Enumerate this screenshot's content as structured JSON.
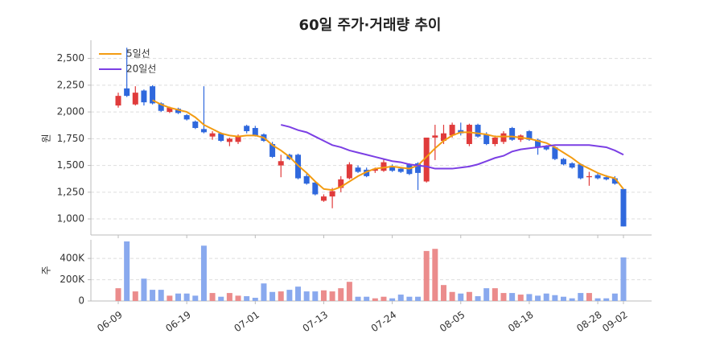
{
  "chart_data": {
    "type": "candlestick",
    "title": "60일 주가·거래량 추이",
    "categories": [
      "06-09",
      null,
      null,
      null,
      null,
      null,
      null,
      null,
      "06-19",
      null,
      null,
      null,
      null,
      null,
      null,
      null,
      "07-01",
      null,
      null,
      null,
      null,
      null,
      null,
      null,
      "07-13",
      null,
      null,
      null,
      null,
      null,
      null,
      null,
      "07-24",
      null,
      null,
      null,
      null,
      null,
      null,
      null,
      "08-05",
      null,
      null,
      null,
      null,
      null,
      null,
      null,
      "08-18",
      null,
      null,
      null,
      null,
      null,
      null,
      null,
      "08-28",
      null,
      null,
      "09-02"
    ],
    "open": [
      2060,
      2220,
      2070,
      2200,
      2240,
      2080,
      2000,
      2030,
      1970,
      1910,
      1840,
      1770,
      1800,
      1720,
      1720,
      1870,
      1850,
      1790,
      1700,
      1500,
      1600,
      1600,
      1400,
      1340,
      1170,
      1210,
      1290,
      1380,
      1480,
      1460,
      1450,
      1450,
      1490,
      1470,
      1510,
      1520,
      1350,
      1760,
      1730,
      1780,
      1830,
      1700,
      1880,
      1790,
      1700,
      1720,
      1850,
      1740,
      1820,
      1740,
      1680,
      1670,
      1560,
      1520,
      1510,
      1390,
      1410,
      1390,
      1380,
      1280
    ],
    "high": [
      2180,
      2600,
      2240,
      2210,
      2250,
      2090,
      2050,
      2040,
      1980,
      1920,
      2240,
      1820,
      1810,
      1760,
      1790,
      1880,
      1870,
      1800,
      1720,
      1600,
      1610,
      1610,
      1420,
      1350,
      1230,
      1290,
      1400,
      1530,
      1500,
      1480,
      1480,
      1560,
      1510,
      1480,
      1520,
      1530,
      1760,
      1880,
      1880,
      1900,
      1900,
      1890,
      1890,
      1810,
      1780,
      1820,
      1860,
      1790,
      1830,
      1750,
      1690,
      1680,
      1570,
      1530,
      1520,
      1440,
      1430,
      1410,
      1400,
      1280
    ],
    "low": [
      2040,
      2140,
      2060,
      2060,
      2070,
      2000,
      1990,
      1980,
      1920,
      1840,
      1800,
      1740,
      1720,
      1680,
      1700,
      1800,
      1770,
      1720,
      1570,
      1390,
      1550,
      1370,
      1320,
      1220,
      1160,
      1100,
      1250,
      1370,
      1430,
      1390,
      1430,
      1440,
      1440,
      1430,
      1410,
      1270,
      1340,
      1550,
      1700,
      1760,
      1780,
      1680,
      1760,
      1690,
      1680,
      1700,
      1730,
      1720,
      1730,
      1600,
      1640,
      1550,
      1500,
      1470,
      1370,
      1310,
      1370,
      1360,
      1320,
      930
    ],
    "close": [
      2150,
      2150,
      2180,
      2090,
      2080,
      2010,
      2040,
      1990,
      1930,
      1850,
      1810,
      1800,
      1730,
      1750,
      1770,
      1820,
      1780,
      1730,
      1580,
      1540,
      1560,
      1380,
      1330,
      1230,
      1210,
      1260,
      1370,
      1510,
      1440,
      1400,
      1470,
      1530,
      1450,
      1440,
      1420,
      1430,
      1760,
      1780,
      1800,
      1880,
      1800,
      1880,
      1770,
      1700,
      1760,
      1800,
      1740,
      1780,
      1740,
      1670,
      1650,
      1560,
      1510,
      1480,
      1380,
      1400,
      1380,
      1370,
      1330,
      930
    ],
    "colors": {
      "up": "#e03b3b",
      "down": "#2f68dd",
      "volume_up": "#eb8c8c",
      "volume_down": "#89a9ee"
    },
    "series": [
      {
        "name": "5일선",
        "color": "#f39c12",
        "values": [
          null,
          null,
          null,
          null,
          2110,
          2070,
          2040,
          2020,
          2000,
          1950,
          1880,
          1840,
          1800,
          1780,
          1770,
          1780,
          1780,
          1760,
          1690,
          1640,
          1580,
          1500,
          1430,
          1350,
          1280,
          1270,
          1300,
          1350,
          1400,
          1440,
          1470,
          1480,
          1490,
          1480,
          1470,
          1500,
          1580,
          1660,
          1730,
          1780,
          1810,
          1810,
          1800,
          1790,
          1770,
          1770,
          1770,
          1760,
          1750,
          1730,
          1710,
          1670,
          1620,
          1570,
          1510,
          1470,
          1430,
          1400,
          1380,
          1280
        ]
      },
      {
        "name": "20일선",
        "color": "#7b3fe4",
        "values": [
          null,
          null,
          null,
          null,
          null,
          null,
          null,
          null,
          null,
          null,
          null,
          null,
          null,
          null,
          null,
          null,
          null,
          null,
          null,
          1880,
          1860,
          1830,
          1810,
          1770,
          1730,
          1690,
          1670,
          1640,
          1620,
          1600,
          1580,
          1560,
          1540,
          1530,
          1510,
          1500,
          1490,
          1470,
          1470,
          1470,
          1480,
          1490,
          1510,
          1540,
          1570,
          1590,
          1630,
          1650,
          1660,
          1670,
          1680,
          1690,
          1690,
          1690,
          1690,
          1690,
          1680,
          1670,
          1640,
          1600
        ]
      }
    ],
    "legend": "upper left",
    "grid": true,
    "ylabel": "원",
    "ylim": [
      850,
      2670
    ],
    "yticks": [
      {
        "value": 1000,
        "label": "1,000"
      },
      {
        "value": 1250,
        "label": "1,250"
      },
      {
        "value": 1500,
        "label": "1,500"
      },
      {
        "value": 1750,
        "label": "1,750"
      },
      {
        "value": 2000,
        "label": "2,000"
      },
      {
        "value": 2250,
        "label": "2,250"
      },
      {
        "value": 2500,
        "label": "2,500"
      }
    ],
    "volume": {
      "ylabel": "주",
      "values": [
        120000,
        560000,
        90000,
        210000,
        105000,
        105000,
        50000,
        70000,
        70000,
        50000,
        520000,
        75000,
        40000,
        75000,
        50000,
        45000,
        30000,
        165000,
        85000,
        90000,
        105000,
        135000,
        90000,
        90000,
        100000,
        90000,
        120000,
        180000,
        40000,
        40000,
        25000,
        40000,
        25000,
        60000,
        40000,
        40000,
        470000,
        490000,
        150000,
        85000,
        70000,
        85000,
        45000,
        120000,
        120000,
        75000,
        75000,
        60000,
        65000,
        50000,
        70000,
        55000,
        40000,
        25000,
        75000,
        75000,
        25000,
        25000,
        70000,
        410000
      ],
      "ylim": [
        0,
        575000
      ],
      "yticks": [
        0,
        {
          "value": 200000,
          "label": "200K"
        },
        {
          "value": 400000,
          "label": "400K"
        }
      ]
    }
  }
}
